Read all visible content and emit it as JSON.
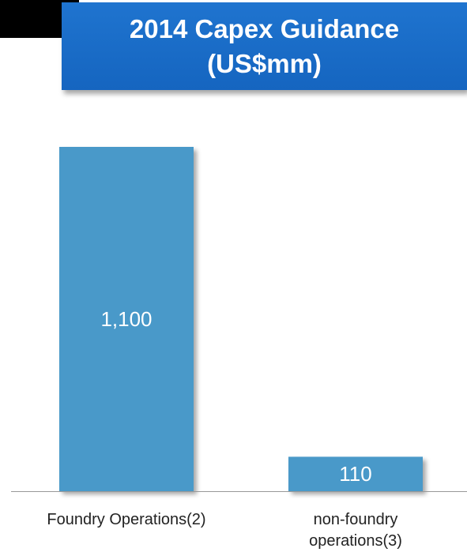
{
  "chart_data": {
    "type": "bar",
    "title": "2014 Capex Guidance\n(US$mm)",
    "categories": [
      "Foundry Operations(2)",
      "non-foundry\noperations(3)"
    ],
    "values": [
      1100,
      110
    ],
    "value_labels": [
      "1,100",
      "110"
    ],
    "xlabel": "",
    "ylabel": "",
    "ylim": [
      0,
      1100
    ],
    "grid": false,
    "legend": "none",
    "colors": {
      "bar": "#4a99c9",
      "title_background": "#1a6cc6",
      "title_text": "#ffffff",
      "axis": "#999999"
    }
  }
}
